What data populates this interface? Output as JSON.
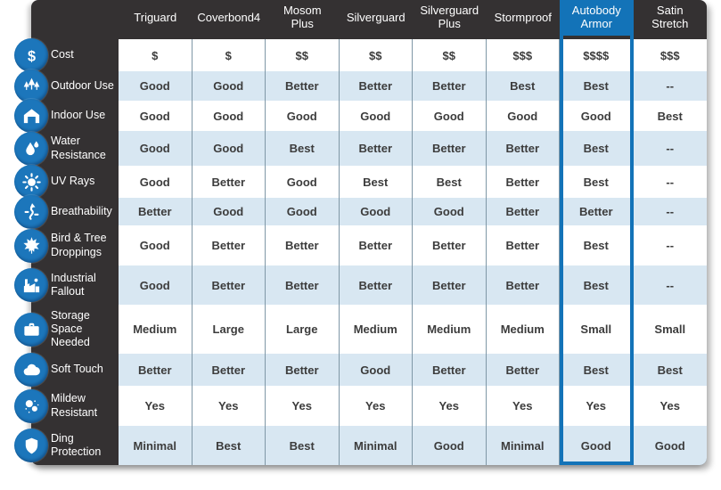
{
  "colors": {
    "accent_blue": "#1373b8",
    "icon_blue": "#1c76bb",
    "panel_dark": "#343132",
    "row_alt_blue": "#d8e7f2",
    "row_white": "#ffffff",
    "cell_border": "#7f97a6",
    "cell_text": "#3c3c3c"
  },
  "chart_data": {
    "type": "table",
    "title": "",
    "na_marker": "--",
    "highlighted_column": "Autobody Armor",
    "columns": [
      "Triguard",
      "Coverbond4",
      "Mosom\nPlus",
      "Silverguard",
      "Silverguard\nPlus",
      "Stormproof",
      "Autobody\nArmor",
      "Satin\nStretch"
    ],
    "rows": [
      {
        "label": "Cost",
        "icon": "dollar-icon",
        "values": [
          "$",
          "$",
          "$$",
          "$$",
          "$$",
          "$$$",
          "$$$$",
          "$$$"
        ]
      },
      {
        "label": "Outdoor Use",
        "icon": "trees-icon",
        "values": [
          "Good",
          "Good",
          "Better",
          "Better",
          "Better",
          "Best",
          "Best",
          "--"
        ]
      },
      {
        "label": "Indoor Use",
        "icon": "garage-icon",
        "values": [
          "Good",
          "Good",
          "Good",
          "Good",
          "Good",
          "Good",
          "Good",
          "Best"
        ]
      },
      {
        "label": "Water Resistance",
        "icon": "water-drop-icon",
        "values": [
          "Good",
          "Good",
          "Best",
          "Better",
          "Better",
          "Better",
          "Best",
          "--"
        ]
      },
      {
        "label": "UV Rays",
        "icon": "sun-icon",
        "values": [
          "Good",
          "Better",
          "Good",
          "Best",
          "Best",
          "Better",
          "Best",
          "--"
        ]
      },
      {
        "label": "Breathability",
        "icon": "airflow-icon",
        "values": [
          "Better",
          "Good",
          "Good",
          "Good",
          "Good",
          "Better",
          "Better",
          "--"
        ]
      },
      {
        "label": "Bird & Tree Droppings",
        "icon": "leaf-icon",
        "values": [
          "Good",
          "Better",
          "Better",
          "Better",
          "Better",
          "Better",
          "Best",
          "--"
        ]
      },
      {
        "label": "Industrial Fallout",
        "icon": "factory-icon",
        "values": [
          "Good",
          "Better",
          "Better",
          "Better",
          "Better",
          "Better",
          "Best",
          "--"
        ]
      },
      {
        "label": "Storage Space Needed",
        "icon": "suitcase-icon",
        "values": [
          "Medium",
          "Large",
          "Large",
          "Medium",
          "Medium",
          "Medium",
          "Small",
          "Small"
        ]
      },
      {
        "label": "Soft Touch",
        "icon": "cloud-icon",
        "values": [
          "Better",
          "Better",
          "Better",
          "Good",
          "Better",
          "Better",
          "Best",
          "Best"
        ]
      },
      {
        "label": "Mildew Resistant",
        "icon": "spores-icon",
        "values": [
          "Yes",
          "Yes",
          "Yes",
          "Yes",
          "Yes",
          "Yes",
          "Yes",
          "Yes"
        ]
      },
      {
        "label": "Ding Protection",
        "icon": "shield-icon",
        "values": [
          "Minimal",
          "Best",
          "Best",
          "Minimal",
          "Good",
          "Minimal",
          "Good",
          "Good"
        ]
      }
    ]
  }
}
